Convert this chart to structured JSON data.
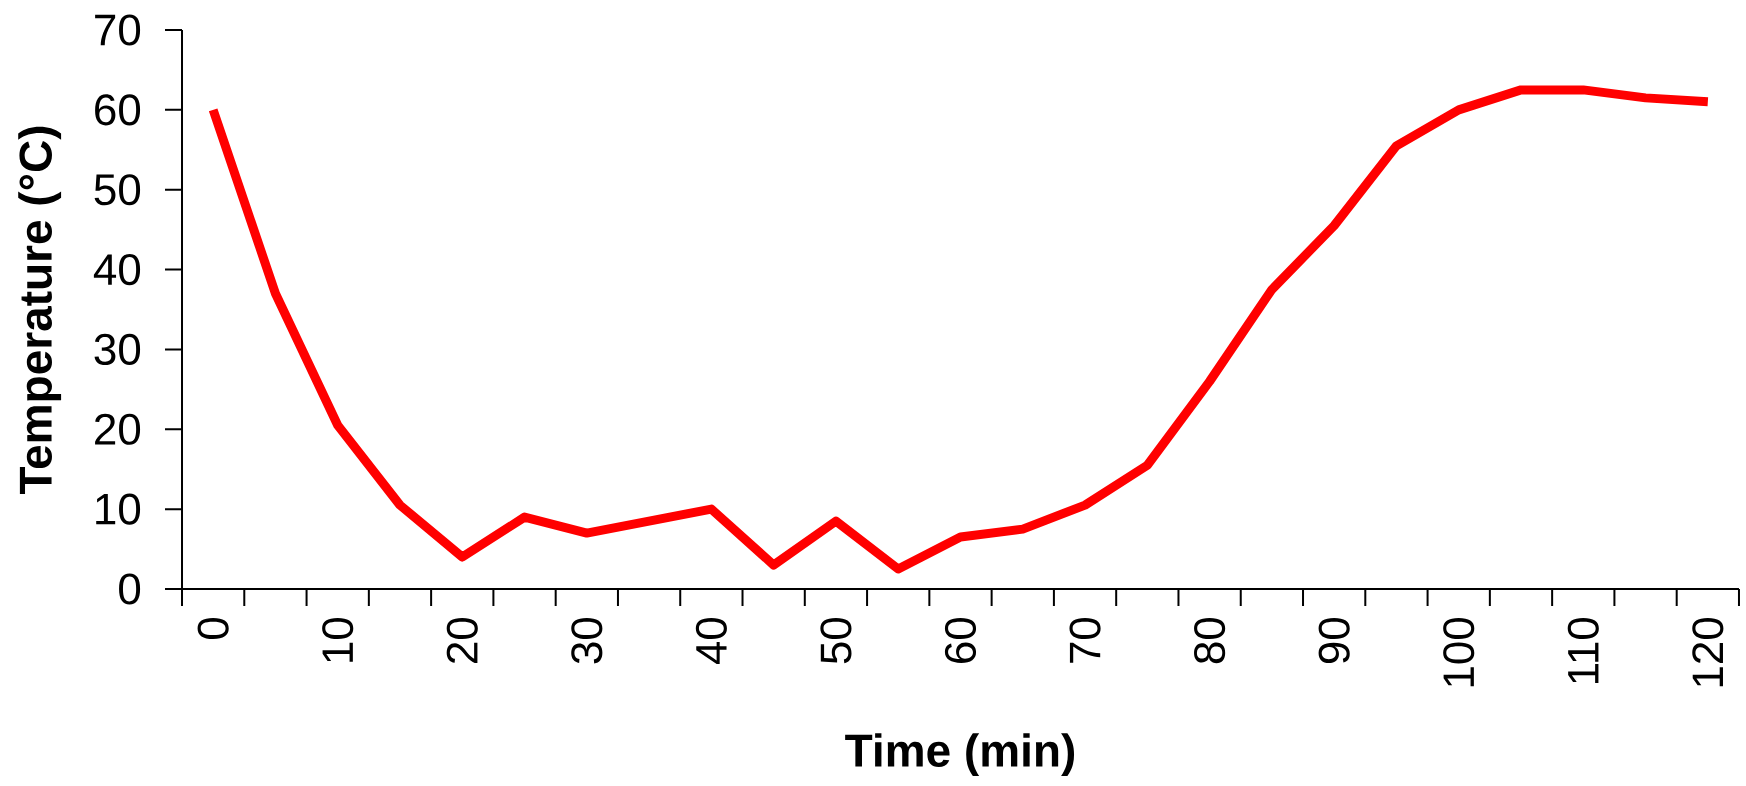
{
  "chart_data": {
    "type": "line",
    "xlabel": "Time (min)",
    "ylabel": "Temperature (°C)",
    "categories": [
      "0",
      null,
      "10",
      null,
      "20",
      null,
      "30",
      null,
      "40",
      null,
      "50",
      null,
      "60",
      null,
      "70",
      null,
      "80",
      null,
      "90",
      null,
      "100",
      null,
      "110",
      null,
      "120"
    ],
    "values": [
      60,
      37,
      20.5,
      10.5,
      4,
      9,
      7,
      8.5,
      10,
      3,
      8.5,
      2.5,
      6.5,
      7.5,
      10.5,
      15.5,
      26,
      37.5,
      45.5,
      55.5,
      60,
      62.5,
      62.5,
      61.5,
      61
    ],
    "color": "#ff0000",
    "ylim": [
      0,
      70
    ],
    "yticks": [
      0,
      10,
      20,
      30,
      40,
      50,
      60,
      70
    ]
  }
}
